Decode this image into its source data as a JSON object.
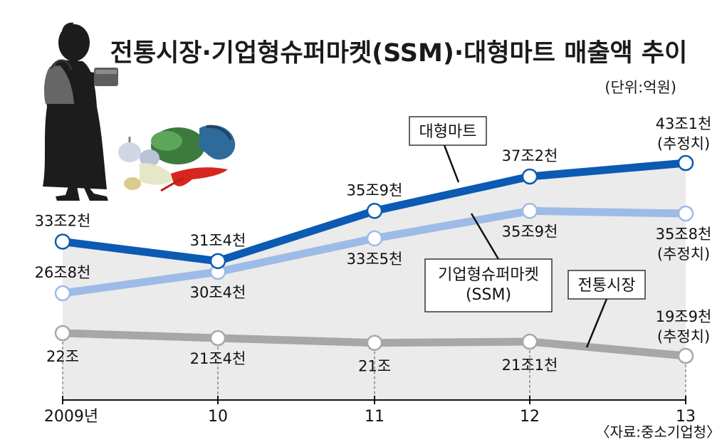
{
  "title": "전통시장·기업형슈퍼마켓(SSM)·대형마트 매출액 추이",
  "unit": "(단위:억원)",
  "source": "〈자료:중소기업청〉",
  "colors": {
    "hypermarket": "#0b5ab3",
    "ssm": "#9dbbe6",
    "traditional": "#a7a7a7",
    "area": "#ebebeb"
  },
  "chart_data": {
    "type": "line",
    "categories": [
      "2009년",
      "10",
      "11",
      "12",
      "13"
    ],
    "series": [
      {
        "name": "대형마트",
        "values": [
          332000,
          314000,
          359000,
          372000,
          431000
        ],
        "labels": [
          "33조2천",
          "31조4천",
          "35조9천",
          "37조2천",
          "43조1천\n(추정치)"
        ]
      },
      {
        "name": "기업형슈퍼마켓\n(SSM)",
        "values": [
          268000,
          304000,
          335000,
          359000,
          358000
        ],
        "labels": [
          "26조8천",
          "30조4천",
          "33조5천",
          "35조9천",
          "35조8천\n(추정치)"
        ]
      },
      {
        "name": "전통시장",
        "values": [
          220000,
          214000,
          210000,
          211000,
          199000
        ],
        "labels": [
          "22조",
          "21조4천",
          "21조",
          "21조1천",
          "19조9천\n(추정치)"
        ]
      }
    ]
  }
}
